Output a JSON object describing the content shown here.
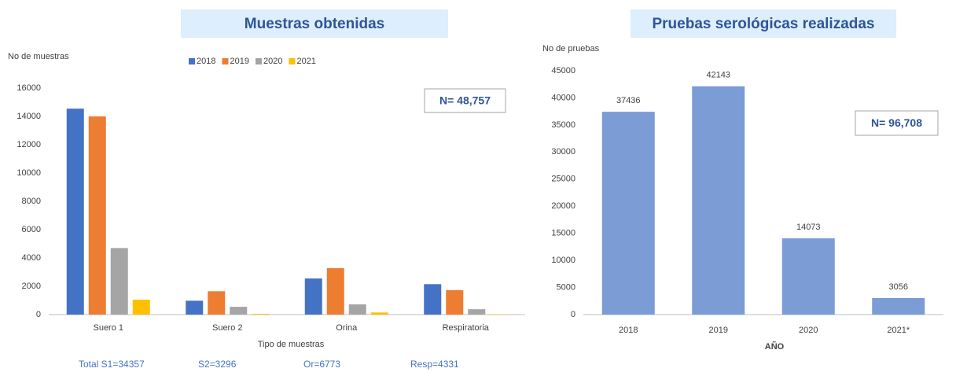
{
  "chart_data": [
    {
      "type": "bar",
      "title": "Muestras obtenidas",
      "y_label": "No de muestras",
      "x_label": "Tipo de muestras",
      "categories": [
        "Suero 1",
        "Suero 2",
        "Orina",
        "Respiratoria"
      ],
      "series": [
        {
          "name": "2018",
          "color": "#4472c4",
          "values": [
            14550,
            980,
            2550,
            2150
          ]
        },
        {
          "name": "2019",
          "color": "#ed7d31",
          "values": [
            14000,
            1650,
            3280,
            1730
          ]
        },
        {
          "name": "2020",
          "color": "#a5a5a5",
          "values": [
            4700,
            550,
            720,
            380
          ]
        },
        {
          "name": "2021",
          "color": "#ffc000",
          "values": [
            1050,
            50,
            150,
            30
          ]
        }
      ],
      "ylim": [
        0,
        16000
      ],
      "yticks": [
        0,
        2000,
        4000,
        6000,
        8000,
        10000,
        12000,
        14000,
        16000
      ],
      "annotation": "N=  48,757",
      "footnotes": [
        "Total   S1=34357",
        "S2=3296",
        "Or=6773",
        "Resp=4331"
      ]
    },
    {
      "type": "bar",
      "title": "Pruebas serológicas realizadas",
      "y_label": "No de pruebas",
      "x_label": "AÑO",
      "categories": [
        "2018",
        "2019",
        "2020",
        "2021*"
      ],
      "values": [
        37436,
        42143,
        14073,
        3056
      ],
      "color": "#7b9cd5",
      "ylim": [
        0,
        45000
      ],
      "yticks": [
        0,
        5000,
        10000,
        15000,
        20000,
        25000,
        30000,
        35000,
        40000,
        45000
      ],
      "annotation": "N=  96,708"
    }
  ]
}
